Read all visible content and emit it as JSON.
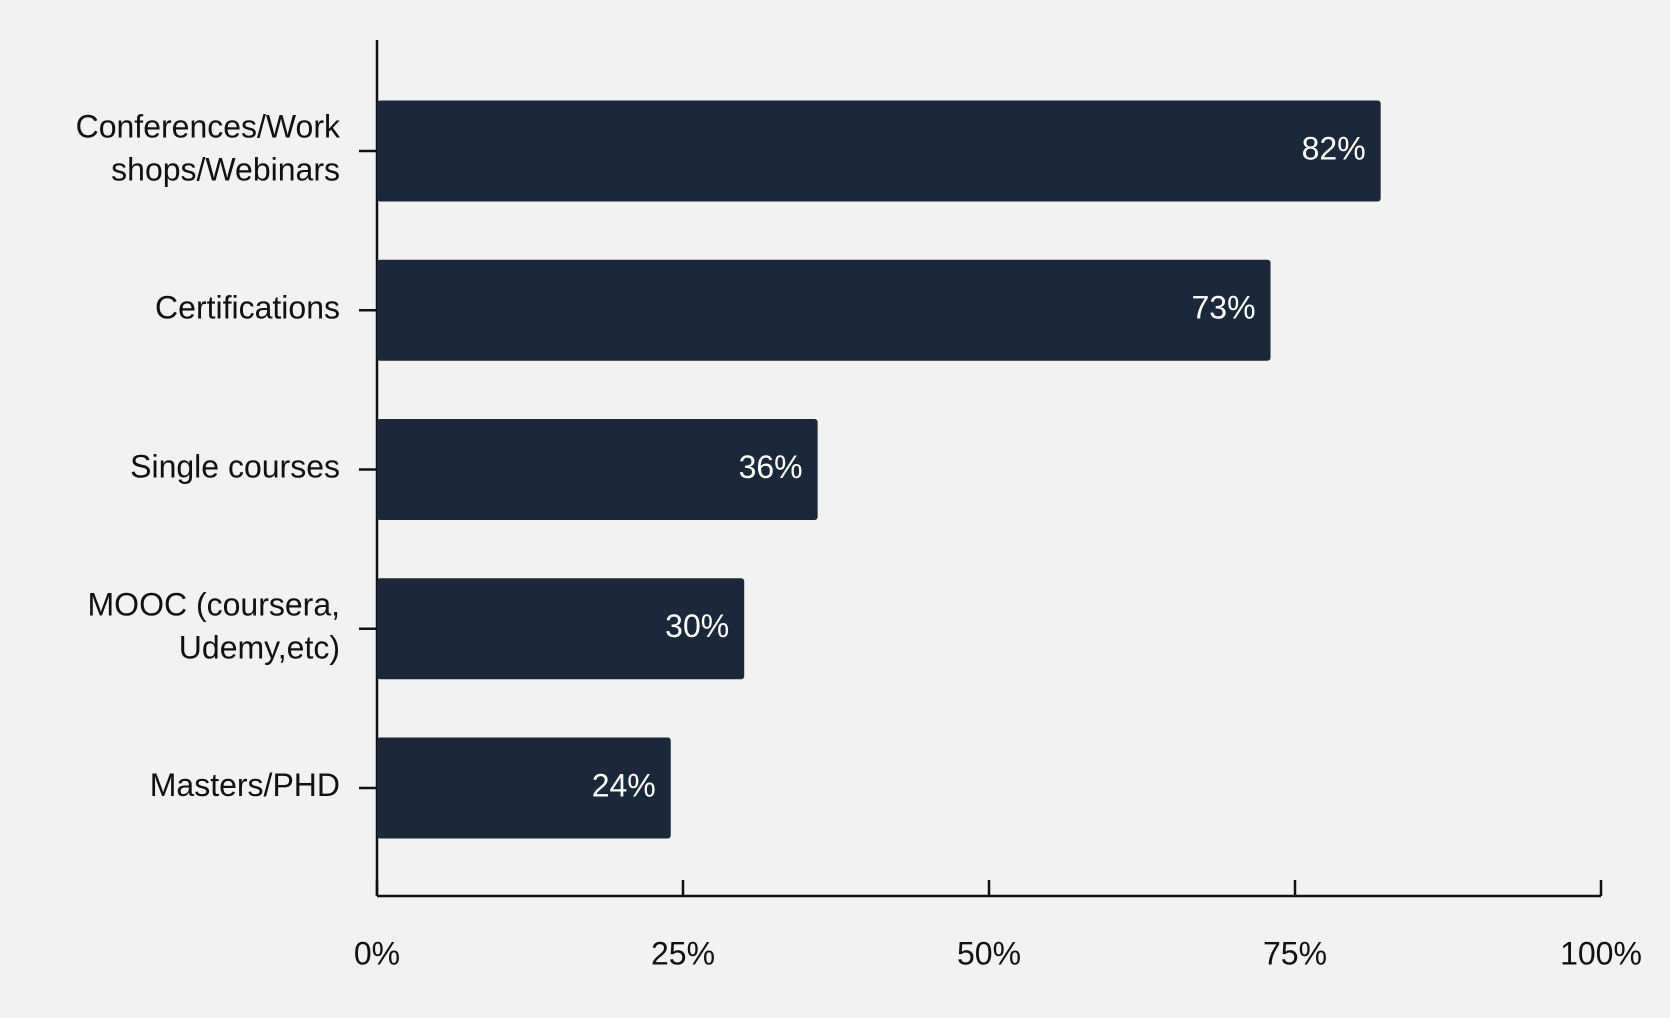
{
  "chart_data": {
    "type": "barh",
    "categories": [
      [
        "Conferences/Work",
        "shops/Webinars"
      ],
      [
        "Certifications"
      ],
      [
        "Single courses"
      ],
      [
        "MOOC (coursera,",
        "Udemy,etc)"
      ],
      [
        "Masters/PHD"
      ]
    ],
    "values": [
      82,
      73,
      36,
      30,
      24
    ],
    "value_labels": [
      "82%",
      "73%",
      "36%",
      "30%",
      "24%"
    ],
    "color": "#1b2839",
    "xlim": [
      0,
      100
    ],
    "xticks": [
      {
        "value": 0,
        "label": "0%"
      },
      {
        "value": 25,
        "label": "25%"
      },
      {
        "value": 50,
        "label": "50%"
      },
      {
        "value": 75,
        "label": "75%"
      },
      {
        "value": 100,
        "label": "100%"
      }
    ]
  }
}
